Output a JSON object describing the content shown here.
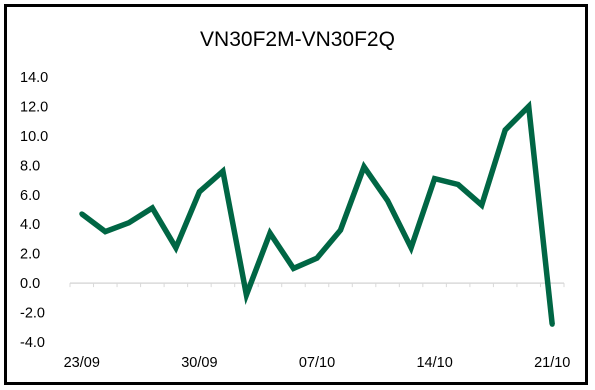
{
  "chart_data": {
    "type": "line",
    "title": "VN30F2M-VN30F2Q",
    "xlabel": "",
    "ylabel": "",
    "ylim": [
      -4.0,
      14.0
    ],
    "y_ticks": [
      "14.0",
      "12.0",
      "10.0",
      "8.0",
      "6.0",
      "4.0",
      "2.0",
      "0.0",
      "-2.0",
      "-4.0"
    ],
    "x_tick_labels": [
      "23/09",
      "30/09",
      "07/10",
      "14/10",
      "21/10"
    ],
    "x": [
      "23/09",
      "24/09",
      "27/09",
      "28/09",
      "29/09",
      "30/09",
      "01/10",
      "04/10",
      "05/10",
      "06/10",
      "07/10",
      "08/10",
      "11/10",
      "12/10",
      "13/10",
      "14/10",
      "15/10",
      "18/10",
      "19/10",
      "20/10",
      "21/10"
    ],
    "series": [
      {
        "values": [
          4.7,
          3.5,
          4.1,
          5.1,
          2.4,
          6.2,
          7.6,
          -0.8,
          3.4,
          1.0,
          1.7,
          3.6,
          7.9,
          5.6,
          2.4,
          7.1,
          6.7,
          5.3,
          10.4,
          12.0,
          -2.8
        ],
        "color": "#006644"
      }
    ],
    "grid": false,
    "legend": "none"
  }
}
